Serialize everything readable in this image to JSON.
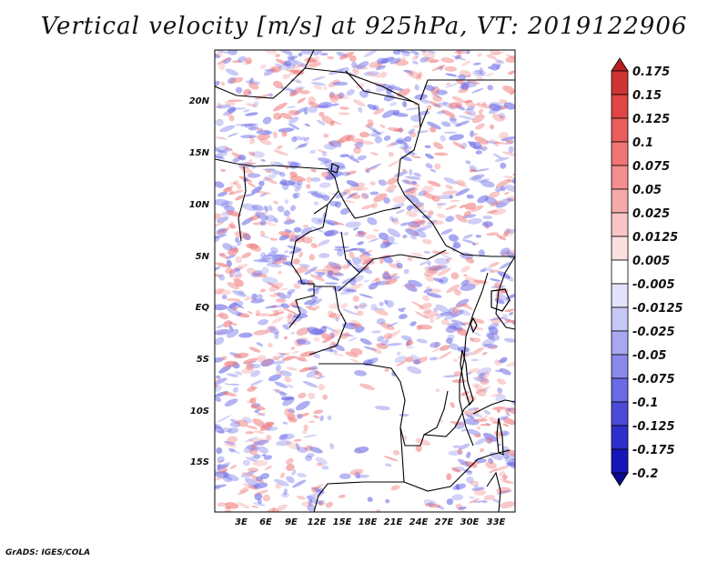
{
  "title": "Vertical velocity [m/s] at 925hPa, VT: 2019122906",
  "footer": "GrADS: IGES/COLA",
  "map": {
    "lon_labels": [
      "3E",
      "6E",
      "9E",
      "12E",
      "15E",
      "18E",
      "21E",
      "24E",
      "27E",
      "30E",
      "33E"
    ],
    "lat_labels": [
      "20N",
      "15N",
      "10N",
      "5N",
      "EQ",
      "5S",
      "10S",
      "15S"
    ],
    "field_colors": {
      "negative": "#6f6fe8",
      "positive": "#f07f80",
      "neutral": "#ffffff",
      "boundary": "#000000"
    }
  },
  "colorbar": {
    "levels": [
      "0.175",
      "0.15",
      "0.125",
      "0.1",
      "0.075",
      "0.05",
      "0.025",
      "0.0125",
      "0.005",
      "-0.005",
      "-0.0125",
      "-0.025",
      "-0.05",
      "-0.075",
      "-0.1",
      "-0.125",
      "-0.175",
      "-0.2"
    ],
    "colors": [
      "#bb1e1e",
      "#cf3434",
      "#e04646",
      "#ea5d5d",
      "#f07676",
      "#f38f8f",
      "#f6a9a9",
      "#f9c5c5",
      "#fce0e0",
      "#ffffff",
      "#e2e2fb",
      "#c7c7f6",
      "#a8a8f0",
      "#8989ea",
      "#6a6ae4",
      "#4b4bd8",
      "#2e2ecb",
      "#1616b8",
      "#090990"
    ]
  }
}
